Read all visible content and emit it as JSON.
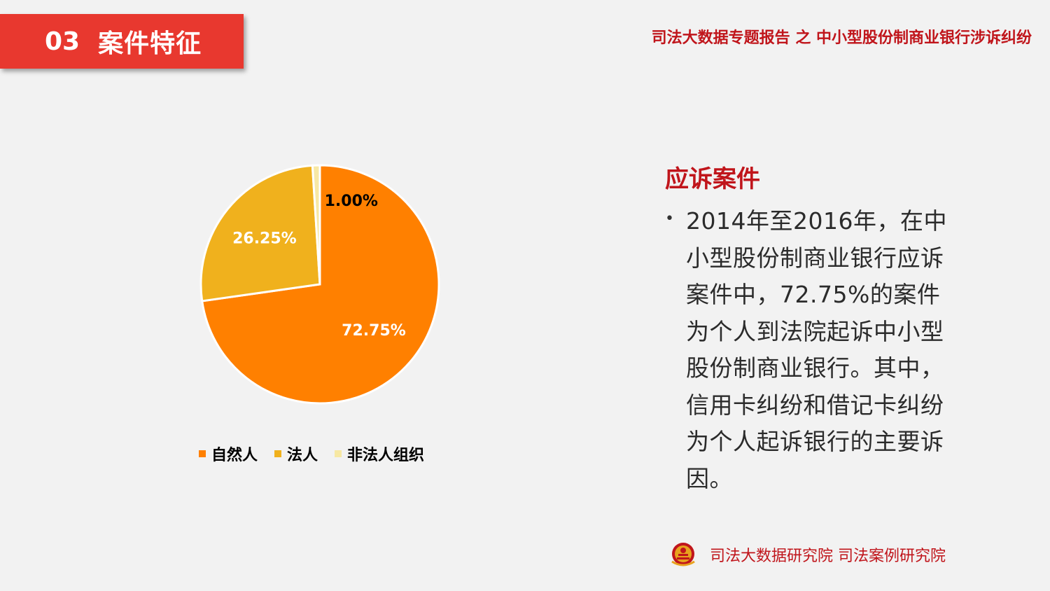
{
  "header": {
    "section_number": "03",
    "section_title": "案件特征",
    "report_title": "司法大数据专题报告 之 中小型股份制商业银行涉诉纠纷"
  },
  "chart_data": {
    "type": "pie",
    "categories": [
      "自然人",
      "法人",
      "非法人组织"
    ],
    "values": [
      72.75,
      26.25,
      1.0
    ],
    "data_labels": [
      "72.75%",
      "26.25%",
      "1.00%"
    ],
    "colors": [
      "#ff8000",
      "#f0b11d",
      "#f7e8a4"
    ],
    "legend_position": "bottom"
  },
  "right_panel": {
    "heading": "应诉案件",
    "bullet": "2014年至2016年，在中小型股份制商业银行应诉案件中，72.75%的案件为个人到法院起诉中小型股份制商业银行。其中，信用卡纠纷和借记卡纠纷为个人起诉银行的主要诉因。"
  },
  "footer": {
    "org_text": "司法大数据研究院  司法案例研究院",
    "emblem_icon": "court-emblem-icon"
  },
  "colors": {
    "accent_red": "#e8382f",
    "dark_red": "#c0151b",
    "background": "#f2f2f2"
  }
}
